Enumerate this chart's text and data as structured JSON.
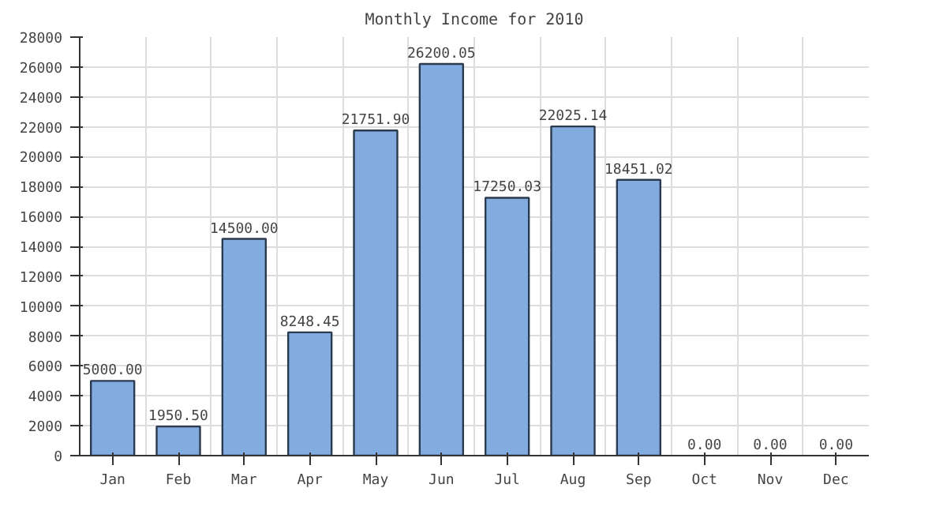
{
  "chart_data": {
    "type": "bar",
    "title": "Monthly Income for 2010",
    "categories": [
      "Jan",
      "Feb",
      "Mar",
      "Apr",
      "May",
      "Jun",
      "Jul",
      "Aug",
      "Sep",
      "Oct",
      "Nov",
      "Dec"
    ],
    "values": [
      5000.0,
      1950.5,
      14500.0,
      8248.45,
      21751.9,
      26200.05,
      17250.03,
      22025.14,
      18451.02,
      0,
      0,
      0
    ],
    "value_labels": [
      "5000.00",
      "1950.50",
      "14500.00",
      "8248.45",
      "21751.90",
      "26200.05",
      "17250.03",
      "22025.14",
      "18451.02",
      "0.00",
      "0.00",
      "0.00"
    ],
    "color": "#82ace0",
    "ylim": [
      0,
      28000
    ],
    "yticks": [
      0,
      2000,
      4000,
      6000,
      8000,
      10000,
      12000,
      14000,
      16000,
      18000,
      20000,
      22000,
      24000,
      26000,
      28000
    ],
    "grid": true
  }
}
